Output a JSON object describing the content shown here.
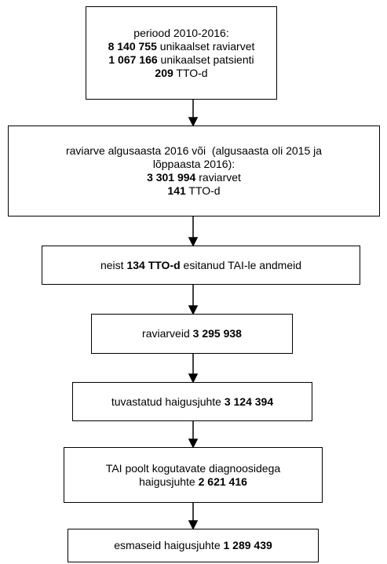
{
  "nodes": [
    {
      "lines": [
        [
          {
            "text": "periood 2010-2016:",
            "bold": false
          }
        ],
        [
          {
            "text": "8 140 755",
            "bold": true
          },
          {
            "text": " unikaalset raviarvet",
            "bold": false
          }
        ],
        [
          {
            "text": "1 067 166",
            "bold": true
          },
          {
            "text": " unikaalset patsienti",
            "bold": false
          }
        ],
        [
          {
            "text": "209",
            "bold": true
          },
          {
            "text": " TTO-d",
            "bold": false
          }
        ]
      ]
    },
    {
      "lines": [
        [
          {
            "text": "raviarve algusaasta 2016 või  (algusaasta oli 2015 ja",
            "bold": false
          }
        ],
        [
          {
            "text": "lõppaasta 2016):",
            "bold": false
          }
        ],
        [
          {
            "text": "3 301 994",
            "bold": true
          },
          {
            "text": " raviarvet",
            "bold": false
          }
        ],
        [
          {
            "text": "141",
            "bold": true
          },
          {
            "text": " TTO-d",
            "bold": false
          }
        ]
      ]
    },
    {
      "lines": [
        [
          {
            "text": "neist ",
            "bold": false
          },
          {
            "text": "134 TTO-d",
            "bold": true
          },
          {
            "text": " esitanud TAI-le andmeid",
            "bold": false
          }
        ]
      ]
    },
    {
      "lines": [
        [
          {
            "text": "raviarveid ",
            "bold": false
          },
          {
            "text": "3 295 938",
            "bold": true
          }
        ]
      ]
    },
    {
      "lines": [
        [
          {
            "text": "tuvastatud haigusjuhte ",
            "bold": false
          },
          {
            "text": "3 124 394",
            "bold": true
          }
        ]
      ]
    },
    {
      "lines": [
        [
          {
            "text": "TAI poolt kogutavate diagnoosidega",
            "bold": false
          }
        ],
        [
          {
            "text": "haigusjuhte ",
            "bold": false
          },
          {
            "text": "2 621 416",
            "bold": true
          }
        ]
      ]
    },
    {
      "lines": [
        [
          {
            "text": "esmaseid haigusjuhte ",
            "bold": false
          },
          {
            "text": "1 289 439",
            "bold": true
          }
        ]
      ]
    }
  ]
}
